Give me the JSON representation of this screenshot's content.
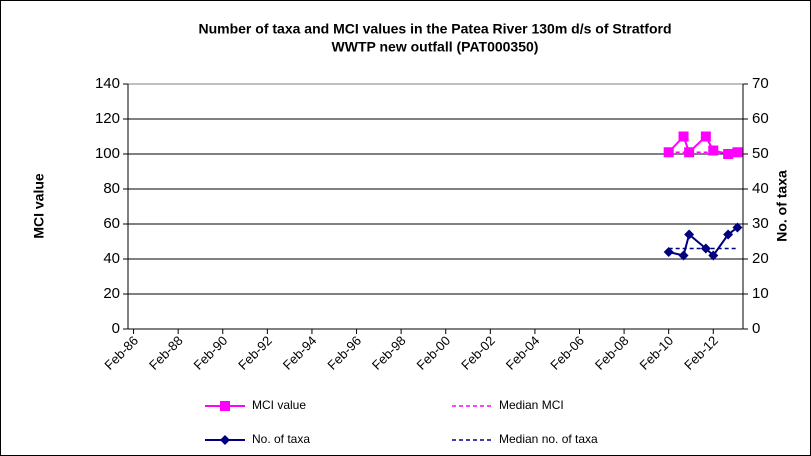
{
  "chart_data": {
    "type": "line",
    "title": [
      "Number of taxa and MCI values in the Patea River 130m d/s of Stratford",
      "WWTP new outfall (PAT000350)"
    ],
    "y_label": "MCI value",
    "y2_label": "No. of taxa",
    "x": [
      "2010-02",
      "2010-10",
      "2011-01",
      "2011-10",
      "2012-02",
      "2012-10",
      "2013-03"
    ],
    "series": [
      {
        "name": "MCI value",
        "color": "#ff00ff",
        "marker": "square",
        "dash": false,
        "values": [
          101,
          110,
          101,
          110,
          102,
          100,
          101
        ]
      },
      {
        "name": "Median MCI",
        "color": "#ff00ff",
        "marker": "none",
        "dash": true,
        "values": [
          101,
          101,
          101,
          101,
          101,
          101,
          101
        ]
      },
      {
        "name": "No. of taxa",
        "color": "#000080",
        "marker": "diamond",
        "dash": false,
        "axis": "y2",
        "values": [
          22,
          21,
          27,
          23,
          21,
          27,
          29
        ]
      },
      {
        "name": "Median no. of taxa",
        "color": "#000080",
        "marker": "none",
        "dash": true,
        "axis": "y2",
        "values": [
          23,
          23,
          23,
          23,
          23,
          23,
          23
        ]
      }
    ],
    "xlim": [
      "1985-11",
      "2013-06"
    ],
    "xticks": [
      {
        "value": "1986-02",
        "label": "Feb-86"
      },
      {
        "value": "1988-02",
        "label": "Feb-88"
      },
      {
        "value": "1990-02",
        "label": "Feb-90"
      },
      {
        "value": "1992-02",
        "label": "Feb-92"
      },
      {
        "value": "1994-02",
        "label": "Feb-94"
      },
      {
        "value": "1996-02",
        "label": "Feb-96"
      },
      {
        "value": "1998-02",
        "label": "Feb-98"
      },
      {
        "value": "2000-02",
        "label": "Feb-00"
      },
      {
        "value": "2002-02",
        "label": "Feb-02"
      },
      {
        "value": "2004-02",
        "label": "Feb-04"
      },
      {
        "value": "2006-02",
        "label": "Feb-06"
      },
      {
        "value": "2008-02",
        "label": "Feb-08"
      },
      {
        "value": "2010-02",
        "label": "Feb-10"
      },
      {
        "value": "2012-02",
        "label": "Feb-12"
      }
    ],
    "ylim": [
      0,
      140
    ],
    "yticks": [
      0,
      20,
      40,
      60,
      80,
      100,
      120,
      140
    ],
    "y2lim": [
      0,
      70
    ],
    "y2ticks": [
      0,
      10,
      20,
      30,
      40,
      50,
      60,
      70
    ],
    "grid": true
  }
}
